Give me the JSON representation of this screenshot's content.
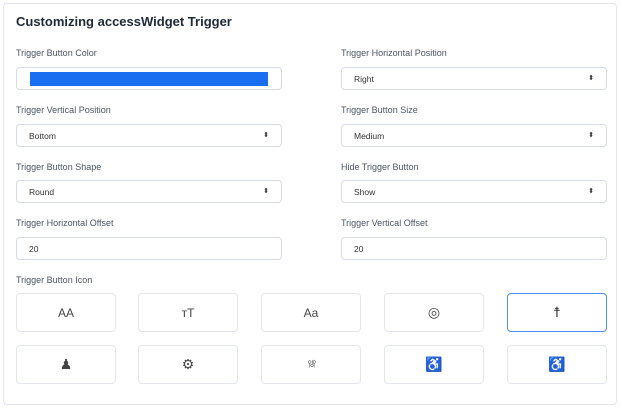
{
  "title": "Customizing accessWidget Trigger",
  "fields": {
    "button_color": {
      "label": "Trigger Button Color",
      "value": "#1a6ff0"
    },
    "horizontal_position": {
      "label": "Trigger Horizontal Position",
      "value": "Right"
    },
    "vertical_position": {
      "label": "Trigger Vertical Position",
      "value": "Bottom"
    },
    "button_size": {
      "label": "Trigger Button Size",
      "value": "Medium"
    },
    "button_shape": {
      "label": "Trigger Button Shape",
      "value": "Round"
    },
    "hide_button": {
      "label": "Hide Trigger Button",
      "value": "Show"
    },
    "horizontal_offset": {
      "label": "Trigger Horizontal Offset",
      "value": "20"
    },
    "vertical_offset": {
      "label": "Trigger Vertical Offset",
      "value": "20"
    }
  },
  "icon_label": "Trigger Button Icon",
  "icons": [
    {
      "name": "font-size-icon",
      "glyph": "AA"
    },
    {
      "name": "text-height-icon",
      "glyph": "тT"
    },
    {
      "name": "font-case-icon",
      "glyph": "Aa"
    },
    {
      "name": "life-ring-icon",
      "glyph": "◎"
    },
    {
      "name": "accessibility-person-icon",
      "glyph": "☨",
      "selected": true
    },
    {
      "name": "child-icon",
      "glyph": "♟"
    },
    {
      "name": "gear-icon",
      "glyph": "⚙"
    },
    {
      "name": "sliders-icon",
      "glyph": "⫯⫰⫯"
    },
    {
      "name": "wheelchair-icon",
      "glyph": "♿"
    },
    {
      "name": "wheelchair-active-icon",
      "glyph": "♿"
    }
  ],
  "accent": "#4d8ef7"
}
